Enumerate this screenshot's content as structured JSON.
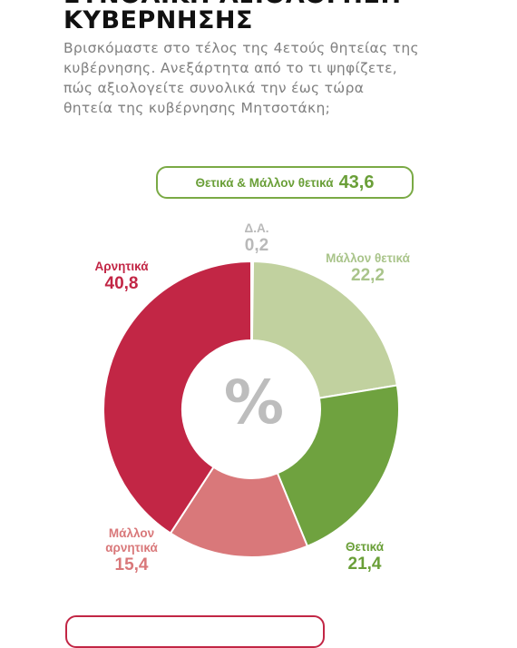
{
  "title": {
    "line1": "ΣΥΝΟΛΙΚΗ ΑΞΙΟΛΟΓΗΣΗ",
    "line2": "ΚΥΒΕΡΝΗΣΗΣ"
  },
  "question": {
    "line1": "Βρισκόμαστε στο τέλος της 4ετούς θητείας της",
    "line2": "κυβέρνησης. Ανεξάρτητα από το τι ψηφίζετε,",
    "line3": "πώς αξιολογείτε συνολικά την έως τώρα",
    "line4": "θητεία της κυβέρνησης Μητσοτάκη;"
  },
  "summary": {
    "label": "Θετικά & Μάλλον θετικά",
    "value": "43,6",
    "color": "#6a9f38"
  },
  "center_symbol": "%",
  "chart_data": {
    "type": "pie",
    "variant": "donut",
    "title": "",
    "unit": "%",
    "slices": [
      {
        "label": "Δ.Α.",
        "value": 0.2,
        "display": "0,2",
        "color": "#cccccc"
      },
      {
        "label": "Μάλλον θετικά",
        "value": 22.2,
        "display": "22,2",
        "color": "#c1d19f"
      },
      {
        "label": "Θετικά",
        "value": 21.4,
        "display": "21,4",
        "color": "#6fa23f"
      },
      {
        "label": "Μάλλον αρνητικά",
        "label_lines": [
          "Μάλλον",
          "αρνητικά"
        ],
        "value": 15.4,
        "display": "15,4",
        "color": "#d9787a"
      },
      {
        "label": "Αρνητικά",
        "value": 40.8,
        "display": "40,8",
        "color": "#c22645"
      }
    ]
  }
}
